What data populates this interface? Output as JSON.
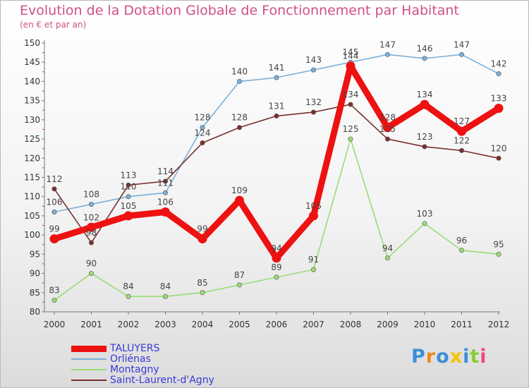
{
  "chart_data": {
    "type": "line",
    "title": "Evolution de la Dotation Globale de Fonctionnement par Habitant",
    "subtitle": "(en € et par an)",
    "xlabel": "",
    "ylabel": "",
    "ylim": [
      80,
      150
    ],
    "yticks": [
      80,
      85,
      90,
      95,
      100,
      105,
      110,
      115,
      120,
      125,
      130,
      135,
      140,
      145,
      150
    ],
    "categories": [
      "2000",
      "2001",
      "2002",
      "2003",
      "2004",
      "2005",
      "2006",
      "2007",
      "2008",
      "2009",
      "2010",
      "2011",
      "2012"
    ],
    "grid": false,
    "legend_position": "bottom-left",
    "series": [
      {
        "name": "TALUYERS",
        "color": "#ee1111",
        "values": [
          99,
          102,
          105,
          106,
          99,
          109,
          94,
          105,
          144,
          128,
          134,
          127,
          133
        ]
      },
      {
        "name": "Orliénas",
        "color": "#7ab0d8",
        "values": [
          106,
          108,
          110,
          111,
          128,
          140,
          141,
          143,
          145,
          147,
          146,
          147,
          142
        ]
      },
      {
        "name": "Montagny",
        "color": "#99dd77",
        "values": [
          83,
          90,
          84,
          84,
          85,
          87,
          89,
          91,
          125,
          94,
          103,
          96,
          95
        ]
      },
      {
        "name": "Saint-Laurent-d'Agny",
        "color": "#7a2f2f",
        "values": [
          112,
          98,
          113,
          114,
          124,
          128,
          131,
          132,
          134,
          125,
          123,
          122,
          120
        ]
      }
    ]
  },
  "branding": {
    "logo_text": "Proxiti",
    "logo_colors": [
      "#3a8fd8",
      "#ee8822",
      "#3a8fd8",
      "#f2c400",
      "#3a8fd8",
      "#88cc33",
      "#ee4488"
    ]
  }
}
